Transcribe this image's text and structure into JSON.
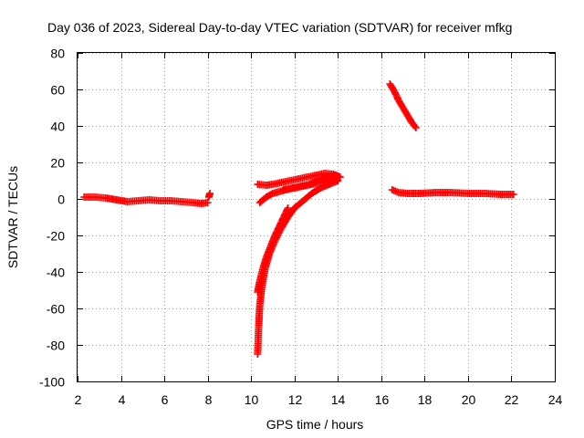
{
  "chart_data": {
    "type": "scatter",
    "title": "Day 036 of 2023, Sidereal Day-to-day VTEC variation (SDTVAR) for receiver mfkg",
    "xlabel": "GPS time / hours",
    "ylabel": "SDTVAR / TECUs",
    "xlim": [
      2,
      24
    ],
    "ylim": [
      -100,
      80
    ],
    "xticks": [
      2,
      4,
      6,
      8,
      10,
      12,
      14,
      16,
      18,
      20,
      22,
      24
    ],
    "yticks": [
      -100,
      -80,
      -60,
      -40,
      -20,
      0,
      20,
      40,
      60,
      80
    ],
    "grid": true,
    "marker": "+",
    "series": [
      {
        "name": "SDTVAR",
        "color": "#ff0000",
        "segments": [
          {
            "x": [
              2.3,
              2.8,
              3.3,
              3.8,
              4.3,
              4.8,
              5.3,
              5.8,
              6.3,
              6.8,
              7.3,
              7.7,
              8.0
            ],
            "y": [
              1,
              1,
              0.5,
              -0.5,
              -1.5,
              -1,
              -0.5,
              -1,
              -1,
              -1.5,
              -2,
              -2.5,
              -2
            ]
          },
          {
            "x": [
              8.05,
              8.1
            ],
            "y": [
              1,
              3
            ]
          },
          {
            "x": [
              10.3,
              10.35,
              10.4,
              10.5,
              10.65,
              10.85,
              11.1,
              11.4,
              11.7,
              12.0,
              12.4,
              12.8,
              13.2,
              13.6,
              14.0
            ],
            "y": [
              -85,
              -70,
              -58,
              -48,
              -38,
              -30,
              -23,
              -16,
              -10,
              -5,
              -1,
              3,
              6,
              8,
              10
            ]
          },
          {
            "x": [
              10.3,
              10.4,
              10.55,
              10.7,
              10.9,
              11.1,
              11.3,
              11.5,
              11.7
            ],
            "y": [
              -51,
              -45,
              -38,
              -32,
              -26,
              -20,
              -15,
              -10,
              -5
            ]
          },
          {
            "x": [
              10.4,
              10.7,
              11.0,
              11.3,
              11.6,
              12.0,
              12.4,
              12.8,
              13.2,
              13.6,
              14.0
            ],
            "y": [
              -2,
              1,
              3,
              4,
              5,
              6,
              7,
              8,
              9,
              10,
              10
            ]
          },
          {
            "x": [
              10.3,
              10.7,
              11.0,
              11.4,
              11.8,
              12.2,
              12.6,
              13.0,
              13.4,
              13.8,
              14.1
            ],
            "y": [
              8,
              7.5,
              8,
              9,
              10,
              11,
              12,
              13,
              14,
              13.5,
              12
            ]
          },
          {
            "x": [
              11.5,
              11.9,
              12.3,
              12.7,
              13.1,
              13.5,
              13.9,
              14.1
            ],
            "y": [
              5,
              6,
              7,
              8,
              10,
              12,
              13,
              12
            ]
          },
          {
            "x": [
              16.4,
              16.6,
              16.8,
              17.0,
              17.2,
              17.4,
              17.6
            ],
            "y": [
              63,
              59,
              54,
              50,
              46,
              42,
              39
            ]
          },
          {
            "x": [
              16.5,
              16.8,
              17.2,
              17.8,
              18.5,
              19.2,
              20.0,
              20.8,
              21.5,
              22.1
            ],
            "y": [
              5,
              3.5,
              3,
              3,
              3.5,
              3.5,
              3,
              3,
              2.5,
              2.5
            ]
          }
        ]
      }
    ]
  }
}
